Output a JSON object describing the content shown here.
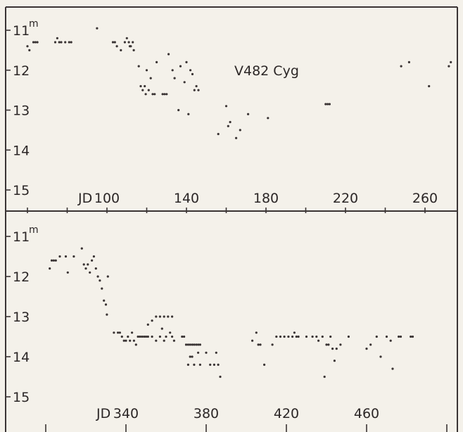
{
  "colors": {
    "ink": "#3a3434",
    "paper": "#f4f1ea"
  },
  "chart_data": [
    {
      "type": "scatter",
      "title": "V482 Cyg",
      "xlabel": "JD",
      "ylabel": "",
      "y_unit": "m",
      "y_inverted": true,
      "xlim": [
        60,
        275
      ],
      "ylim": [
        10.75,
        15.1
      ],
      "x_ticks": [
        60,
        80,
        100,
        120,
        140,
        160,
        180,
        200,
        220,
        240,
        260
      ],
      "x_tick_labels": [
        {
          "x": 100,
          "label": "100"
        },
        {
          "x": 140,
          "label": "140"
        },
        {
          "x": 180,
          "label": "180"
        },
        {
          "x": 220,
          "label": "220"
        },
        {
          "x": 260,
          "label": "260"
        }
      ],
      "y_ticks": [
        11,
        12,
        13,
        14,
        15
      ],
      "y_tick_labels": [
        "11",
        "12",
        "13",
        "14",
        "15"
      ],
      "grid": false,
      "series": [
        {
          "points": [
            [
              60,
              11.4
            ],
            [
              61,
              11.5
            ],
            [
              63,
              11.3
            ],
            [
              64,
              11.3
            ],
            [
              65,
              11.3
            ],
            [
              74,
              11.3
            ],
            [
              75,
              11.2
            ],
            [
              76,
              11.3
            ],
            [
              77,
              11.3
            ],
            [
              79,
              11.3
            ],
            [
              81,
              11.3
            ],
            [
              82,
              11.3
            ],
            [
              95,
              10.95
            ],
            [
              103,
              11.3
            ],
            [
              104,
              11.3
            ],
            [
              105,
              11.4
            ],
            [
              107,
              11.5
            ],
            [
              109,
              11.3
            ],
            [
              110,
              11.2
            ],
            [
              111,
              11.3
            ],
            [
              111.5,
              11.4
            ],
            [
              112,
              11.4
            ],
            [
              113,
              11.3
            ],
            [
              113.5,
              11.5
            ],
            [
              116,
              11.9
            ],
            [
              117,
              12.4
            ],
            [
              118,
              12.5
            ],
            [
              119,
              12.4
            ],
            [
              119.5,
              12.6
            ],
            [
              120,
              12.0
            ],
            [
              121,
              12.5
            ],
            [
              122,
              12.2
            ],
            [
              123,
              12.6
            ],
            [
              124,
              12.6
            ],
            [
              125,
              11.8
            ],
            [
              128,
              12.6
            ],
            [
              129,
              12.6
            ],
            [
              130,
              12.6
            ],
            [
              131,
              11.6
            ],
            [
              133,
              12.0
            ],
            [
              134,
              12.2
            ],
            [
              136,
              13.0
            ],
            [
              137,
              11.9
            ],
            [
              139,
              12.3
            ],
            [
              140,
              11.8
            ],
            [
              141,
              13.1
            ],
            [
              142,
              12.0
            ],
            [
              143,
              12.1
            ],
            [
              144,
              12.5
            ],
            [
              145,
              12.4
            ],
            [
              146,
              12.5
            ],
            [
              156,
              13.6
            ],
            [
              160,
              12.9
            ],
            [
              161,
              13.4
            ],
            [
              162,
              13.3
            ],
            [
              165,
              13.7
            ],
            [
              167,
              13.5
            ],
            [
              171,
              13.1
            ],
            [
              181,
              13.2
            ],
            [
              210,
              12.85
            ],
            [
              211,
              12.85
            ],
            [
              212,
              12.85
            ],
            [
              248,
              11.9
            ],
            [
              252,
              11.8
            ],
            [
              262,
              12.4
            ],
            [
              272,
              11.9
            ],
            [
              273,
              11.8
            ]
          ]
        }
      ]
    },
    {
      "type": "scatter",
      "title": "",
      "xlabel": "JD",
      "ylabel": "",
      "y_unit": "m",
      "y_inverted": true,
      "xlim": [
        300,
        510
      ],
      "ylim": [
        10.75,
        15.35
      ],
      "x_ticks": [
        300,
        340,
        380,
        420,
        460,
        500
      ],
      "x_tick_labels": [
        {
          "x": 340,
          "label": "340"
        },
        {
          "x": 380,
          "label": "380"
        },
        {
          "x": 420,
          "label": "420"
        },
        {
          "x": 460,
          "label": "460"
        }
      ],
      "y_ticks": [
        11,
        12,
        13,
        14,
        15
      ],
      "y_tick_labels": [
        "11",
        "12",
        "13",
        "14",
        "15"
      ],
      "grid": false,
      "series": [
        {
          "points": [
            [
              302,
              11.8
            ],
            [
              303,
              11.6
            ],
            [
              304,
              11.6
            ],
            [
              305,
              11.6
            ],
            [
              307,
              11.5
            ],
            [
              310,
              11.5
            ],
            [
              311,
              11.9
            ],
            [
              314,
              11.5
            ],
            [
              318,
              11.3
            ],
            [
              319,
              11.7
            ],
            [
              320,
              11.8
            ],
            [
              321,
              11.7
            ],
            [
              322,
              11.9
            ],
            [
              323,
              11.6
            ],
            [
              324,
              11.5
            ],
            [
              325,
              11.8
            ],
            [
              326,
              12.0
            ],
            [
              327,
              12.1
            ],
            [
              328,
              12.3
            ],
            [
              329,
              12.6
            ],
            [
              330,
              12.7
            ],
            [
              330.5,
              12.95
            ],
            [
              331,
              12.0
            ],
            [
              334,
              13.4
            ],
            [
              336,
              13.4
            ],
            [
              337,
              13.4
            ],
            [
              338,
              13.5
            ],
            [
              339,
              13.6
            ],
            [
              340,
              13.6
            ],
            [
              341,
              13.5
            ],
            [
              342,
              13.6
            ],
            [
              343,
              13.4
            ],
            [
              344,
              13.6
            ],
            [
              345,
              13.7
            ],
            [
              346,
              13.5
            ],
            [
              347,
              13.5
            ],
            [
              348,
              13.5
            ],
            [
              349,
              13.5
            ],
            [
              350,
              13.5
            ],
            [
              351,
              13.5
            ],
            [
              351,
              13.2
            ],
            [
              353,
              13.1
            ],
            [
              355,
              13.0
            ],
            [
              357,
              13.0
            ],
            [
              359,
              13.0
            ],
            [
              361,
              13.0
            ],
            [
              363,
              13.0
            ],
            [
              353,
              13.5
            ],
            [
              355,
              13.6
            ],
            [
              357,
              13.5
            ],
            [
              358,
              13.3
            ],
            [
              359,
              13.6
            ],
            [
              360,
              13.5
            ],
            [
              362,
              13.4
            ],
            [
              363,
              13.5
            ],
            [
              364,
              13.6
            ],
            [
              368,
              13.5
            ],
            [
              370,
              13.7
            ],
            [
              371,
              13.7
            ],
            [
              372,
              13.7
            ],
            [
              373,
              13.7
            ],
            [
              374,
              13.7
            ],
            [
              375,
              13.7
            ],
            [
              376,
              13.7
            ],
            [
              377,
              13.7
            ],
            [
              369,
              13.5
            ],
            [
              371,
              14.2
            ],
            [
              372,
              14.0
            ],
            [
              373,
              14.0
            ],
            [
              374,
              14.2
            ],
            [
              376,
              13.9
            ],
            [
              377,
              14.2
            ],
            [
              380,
              13.9
            ],
            [
              382,
              14.2
            ],
            [
              384,
              14.2
            ],
            [
              385,
              13.9
            ],
            [
              386,
              14.2
            ],
            [
              387,
              14.5
            ],
            [
              403,
              13.6
            ],
            [
              405,
              13.4
            ],
            [
              406,
              13.7
            ],
            [
              407,
              13.7
            ],
            [
              409,
              14.2
            ],
            [
              413,
              13.7
            ],
            [
              415,
              13.5
            ],
            [
              417,
              13.5
            ],
            [
              419,
              13.5
            ],
            [
              421,
              13.5
            ],
            [
              423,
              13.5
            ],
            [
              424,
              13.4
            ],
            [
              425,
              13.5
            ],
            [
              426,
              13.5
            ],
            [
              430,
              13.5
            ],
            [
              433,
              13.5
            ],
            [
              435,
              13.5
            ],
            [
              436,
              13.6
            ],
            [
              438,
              13.5
            ],
            [
              439,
              14.5
            ],
            [
              440,
              13.7
            ],
            [
              441,
              13.7
            ],
            [
              442,
              13.5
            ],
            [
              443,
              13.8
            ],
            [
              444,
              14.1
            ],
            [
              445,
              13.8
            ],
            [
              447,
              13.7
            ],
            [
              451,
              13.5
            ],
            [
              460,
              13.8
            ],
            [
              462,
              13.7
            ],
            [
              465,
              13.5
            ],
            [
              467,
              14.0
            ],
            [
              470,
              13.5
            ],
            [
              472,
              13.6
            ],
            [
              473,
              14.3
            ],
            [
              476,
              13.5
            ],
            [
              477,
              13.5
            ],
            [
              482,
              13.5
            ],
            [
              483,
              13.5
            ]
          ]
        }
      ]
    }
  ]
}
